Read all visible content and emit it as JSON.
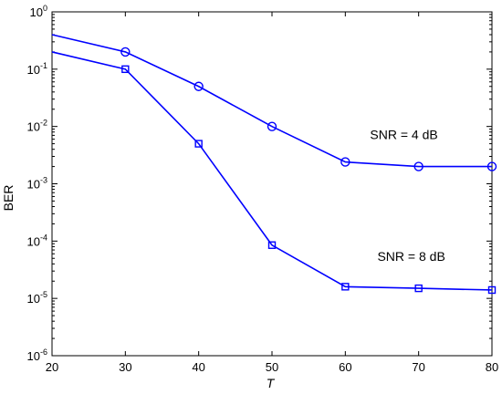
{
  "chart_data": {
    "type": "line",
    "xlabel": "T",
    "ylabel": "BER",
    "xlim": [
      20,
      80
    ],
    "ylim": [
      1e-06,
      1
    ],
    "yscale": "log",
    "grid": false,
    "xticks": [
      "20",
      "30",
      "40",
      "50",
      "60",
      "70",
      "80"
    ],
    "yticks": [
      {
        "base": "10",
        "exp": "0"
      },
      {
        "base": "10",
        "exp": "-1"
      },
      {
        "base": "10",
        "exp": "-2"
      },
      {
        "base": "10",
        "exp": "-3"
      },
      {
        "base": "10",
        "exp": "-4"
      },
      {
        "base": "10",
        "exp": "-5"
      },
      {
        "base": "10",
        "exp": "-6"
      }
    ],
    "series": [
      {
        "marker": "circle",
        "color": "#0000ff",
        "x": [
          20,
          30,
          40,
          50,
          60,
          70,
          80
        ],
        "y": [
          0.4,
          0.2,
          0.05,
          0.01,
          0.0024,
          0.002,
          0.002
        ],
        "annotation": {
          "text": "SNR = 4 dB",
          "x": 68,
          "y": 0.006
        }
      },
      {
        "marker": "square",
        "color": "#0000ff",
        "x": [
          20,
          30,
          40,
          50,
          60,
          70,
          80
        ],
        "y": [
          0.2,
          0.1,
          0.005,
          8.5e-05,
          1.6e-05,
          1.5e-05,
          1.4e-05
        ],
        "annotation": {
          "text": "SNR = 8 dB",
          "x": 69,
          "y": 4.5e-05
        }
      }
    ]
  }
}
